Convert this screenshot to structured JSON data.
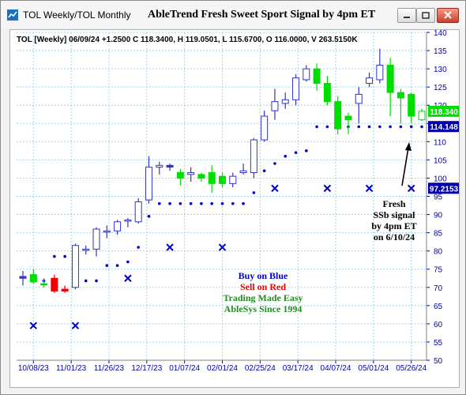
{
  "window": {
    "title_left": "TOL Weekly/TOL Monthly",
    "title_center": "AbleTrend Fresh Sweet Sport Signal by 4pm ET"
  },
  "info_line": "TOL [Weekly] 06/09/24 +1.2500 C 118.3400, H 119.0501, L 115.6700, O 116.0000, V 263.5150K",
  "colors": {
    "up": "#00dd00",
    "down": "#ee0000",
    "neutral": "#3333cc",
    "axis_text": "#0000aa",
    "grid": "#9dd5f0",
    "signal": "#0000cc"
  },
  "chart_data": {
    "type": "candlestick",
    "y_ticks": [
      140,
      135,
      130,
      125,
      120,
      115,
      110,
      105,
      100,
      95,
      90,
      85,
      80,
      75,
      70,
      65,
      60,
      55,
      50
    ],
    "ylim": [
      50,
      140
    ],
    "x_labels": [
      "10/08/23",
      "11/01/23",
      "11/26/23",
      "12/17/23",
      "01/07/24",
      "02/01/24",
      "02/25/24",
      "03/17/24",
      "04/07/24",
      "05/01/24",
      "05/26/24"
    ],
    "candles": [
      {
        "o": 73.0,
        "h": 74.5,
        "l": 70.5,
        "c": 72.5,
        "color": "blue"
      },
      {
        "o": 73.5,
        "h": 75.0,
        "l": 71.0,
        "c": 71.5,
        "color": "green"
      },
      {
        "o": 71.0,
        "h": 72.5,
        "l": 70.0,
        "c": 71.0,
        "color": "green"
      },
      {
        "o": 72.5,
        "h": 73.5,
        "l": 68.5,
        "c": 69.0,
        "color": "red"
      },
      {
        "o": 69.0,
        "h": 70.5,
        "l": 68.5,
        "c": 69.5,
        "color": "red"
      },
      {
        "o": 70.0,
        "h": 82.0,
        "l": 69.5,
        "c": 81.5,
        "color": "blue"
      },
      {
        "o": 80.5,
        "h": 81.5,
        "l": 79.0,
        "c": 80.5,
        "color": "blue"
      },
      {
        "o": 80.5,
        "h": 86.5,
        "l": 78.5,
        "c": 86.0,
        "color": "blue"
      },
      {
        "o": 85.5,
        "h": 87.0,
        "l": 83.5,
        "c": 85.5,
        "color": "blue"
      },
      {
        "o": 85.5,
        "h": 88.5,
        "l": 84.5,
        "c": 88.0,
        "color": "blue"
      },
      {
        "o": 88.5,
        "h": 89.0,
        "l": 86.5,
        "c": 88.5,
        "color": "blue"
      },
      {
        "o": 88.0,
        "h": 94.5,
        "l": 87.5,
        "c": 93.5,
        "color": "blue"
      },
      {
        "o": 94.0,
        "h": 106.0,
        "l": 93.0,
        "c": 103.0,
        "color": "blue"
      },
      {
        "o": 103.0,
        "h": 104.5,
        "l": 101.0,
        "c": 103.5,
        "color": "blue"
      },
      {
        "o": 103.5,
        "h": 104.0,
        "l": 102.0,
        "c": 103.0,
        "color": "blue"
      },
      {
        "o": 101.5,
        "h": 102.5,
        "l": 98.0,
        "c": 100.0,
        "color": "green"
      },
      {
        "o": 101.0,
        "h": 103.0,
        "l": 99.0,
        "c": 101.5,
        "color": "blue"
      },
      {
        "o": 101.0,
        "h": 101.5,
        "l": 99.0,
        "c": 100.0,
        "color": "green"
      },
      {
        "o": 101.5,
        "h": 103.5,
        "l": 96.0,
        "c": 98.5,
        "color": "green"
      },
      {
        "o": 98.5,
        "h": 101.5,
        "l": 97.5,
        "c": 100.5,
        "color": "green"
      },
      {
        "o": 98.5,
        "h": 101.5,
        "l": 97.5,
        "c": 100.5,
        "color": "blue"
      },
      {
        "o": 101.5,
        "h": 104.0,
        "l": 101.0,
        "c": 102.0,
        "color": "blue"
      },
      {
        "o": 101.5,
        "h": 111.0,
        "l": 100.0,
        "c": 110.5,
        "color": "blue"
      },
      {
        "o": 110.5,
        "h": 118.5,
        "l": 110.0,
        "c": 117.0,
        "color": "blue"
      },
      {
        "o": 118.5,
        "h": 124.5,
        "l": 116.0,
        "c": 121.0,
        "color": "blue"
      },
      {
        "o": 120.5,
        "h": 123.5,
        "l": 119.0,
        "c": 121.5,
        "color": "blue"
      },
      {
        "o": 121.5,
        "h": 128.5,
        "l": 120.0,
        "c": 127.5,
        "color": "blue"
      },
      {
        "o": 127.0,
        "h": 131.0,
        "l": 126.5,
        "c": 130.0,
        "color": "blue"
      },
      {
        "o": 130.0,
        "h": 131.5,
        "l": 124.0,
        "c": 126.0,
        "color": "green"
      },
      {
        "o": 126.0,
        "h": 128.0,
        "l": 120.0,
        "c": 121.0,
        "color": "green"
      },
      {
        "o": 121.0,
        "h": 122.5,
        "l": 112.0,
        "c": 113.5,
        "color": "green"
      },
      {
        "o": 117.0,
        "h": 118.0,
        "l": 112.0,
        "c": 116.0,
        "color": "green"
      },
      {
        "o": 120.5,
        "h": 125.0,
        "l": 115.0,
        "c": 123.0,
        "color": "blue"
      },
      {
        "o": 126.0,
        "h": 129.0,
        "l": 125.0,
        "c": 127.5,
        "color": "blue"
      },
      {
        "o": 127.0,
        "h": 135.5,
        "l": 126.0,
        "c": 131.0,
        "color": "blue"
      },
      {
        "o": 131.0,
        "h": 133.0,
        "l": 117.0,
        "c": 123.5,
        "color": "green"
      },
      {
        "o": 123.5,
        "h": 124.5,
        "l": 115.0,
        "c": 122.0,
        "color": "green"
      },
      {
        "o": 123.0,
        "h": 123.5,
        "l": 115.0,
        "c": 117.0,
        "color": "green"
      },
      {
        "o": 116.0,
        "h": 119.05,
        "l": 115.67,
        "c": 118.34,
        "color": "hollow-green"
      }
    ],
    "support_dots": [
      {
        "i": 1,
        "v": 71.8
      },
      {
        "i": 2,
        "v": 71.8
      },
      {
        "i": 3,
        "v": 78.5
      },
      {
        "i": 4,
        "v": 78.5
      },
      {
        "i": 6,
        "v": 71.8
      },
      {
        "i": 7,
        "v": 71.8
      },
      {
        "i": 8,
        "v": 76.0
      },
      {
        "i": 9,
        "v": 76.0
      },
      {
        "i": 10,
        "v": 77.0
      },
      {
        "i": 11,
        "v": 81.0
      },
      {
        "i": 12,
        "v": 89.5
      },
      {
        "i": 13,
        "v": 93.0
      },
      {
        "i": 14,
        "v": 93.0
      },
      {
        "i": 15,
        "v": 93.0
      },
      {
        "i": 16,
        "v": 93.0
      },
      {
        "i": 17,
        "v": 93.0
      },
      {
        "i": 18,
        "v": 93.0
      },
      {
        "i": 19,
        "v": 93.0
      },
      {
        "i": 20,
        "v": 93.0
      },
      {
        "i": 21,
        "v": 93.0
      },
      {
        "i": 22,
        "v": 96.0
      },
      {
        "i": 23,
        "v": 102.0
      },
      {
        "i": 24,
        "v": 104.0
      },
      {
        "i": 25,
        "v": 106.0
      },
      {
        "i": 26,
        "v": 107.0
      },
      {
        "i": 27,
        "v": 107.5
      },
      {
        "i": 28,
        "v": 114.1
      },
      {
        "i": 29,
        "v": 114.1
      },
      {
        "i": 30,
        "v": 114.1
      },
      {
        "i": 31,
        "v": 114.1
      },
      {
        "i": 32,
        "v": 114.1
      },
      {
        "i": 33,
        "v": 114.1
      },
      {
        "i": 34,
        "v": 114.1
      },
      {
        "i": 35,
        "v": 114.1
      },
      {
        "i": 36,
        "v": 114.1
      },
      {
        "i": 37,
        "v": 114.1
      },
      {
        "i": 38,
        "v": 114.1
      },
      {
        "i": 39,
        "v": 114.1
      }
    ],
    "x_markers": [
      {
        "i": 1,
        "v": 59.5
      },
      {
        "i": 5,
        "v": 59.5
      },
      {
        "i": 10,
        "v": 72.5
      },
      {
        "i": 14,
        "v": 81.0
      },
      {
        "i": 19,
        "v": 81.0
      },
      {
        "i": 24,
        "v": 97.2
      },
      {
        "i": 29,
        "v": 97.2
      },
      {
        "i": 33,
        "v": 97.2
      },
      {
        "i": 37,
        "v": 97.2
      }
    ],
    "price_tags": [
      {
        "label": "118.340",
        "v": 118.34,
        "bg": "#00dd00",
        "fg": "#ffffff"
      },
      {
        "label": "114.148",
        "v": 114.148,
        "bg": "#0000aa",
        "fg": "#ffffff"
      },
      {
        "label": "97.2153",
        "v": 97.2153,
        "bg": "#0000aa",
        "fg": "#ffffff"
      }
    ],
    "legend": {
      "line1": "Buy on Blue",
      "line2": "Sell on Red",
      "line3": "Trading Made Easy",
      "line4": "AbleSys Since 1994"
    },
    "annotation": [
      "Fresh",
      "SSb signal",
      "by 4pm ET",
      "on 6/10/24"
    ]
  }
}
